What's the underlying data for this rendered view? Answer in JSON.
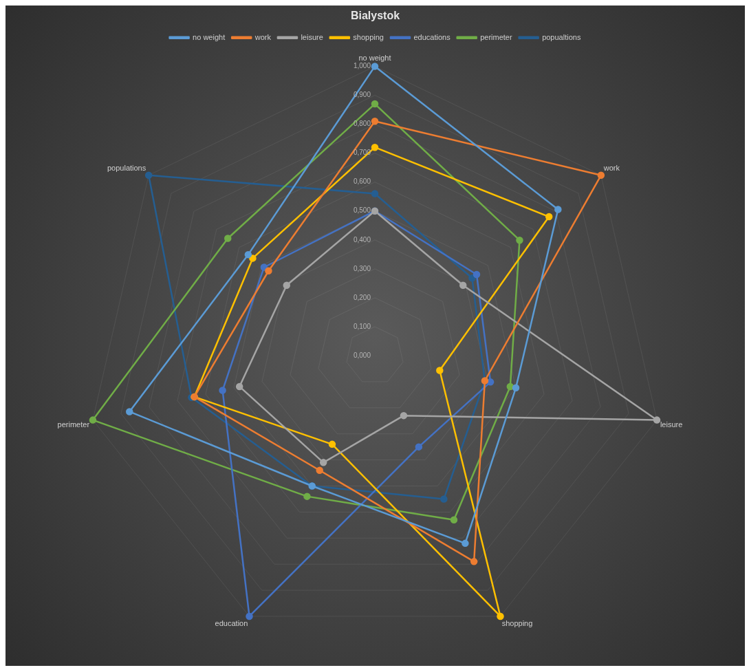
{
  "chart_data": {
    "type": "radar",
    "title": "Bialystok",
    "categories": [
      "no weight",
      "work",
      "leisure",
      "shopping",
      "education",
      "perimeter",
      "populations"
    ],
    "ylim": [
      0,
      1
    ],
    "yticks": [
      {
        "value": 0,
        "label": "0,000"
      },
      {
        "value": 0.1,
        "label": "0,100"
      },
      {
        "value": 0.2,
        "label": "0,200"
      },
      {
        "value": 0.3,
        "label": "0,300"
      },
      {
        "value": 0.4,
        "label": "0,400"
      },
      {
        "value": 0.5,
        "label": "0,500"
      },
      {
        "value": 0.6,
        "label": "0,600"
      },
      {
        "value": 0.7,
        "label": "0,700"
      },
      {
        "value": 0.8,
        "label": "0,800"
      },
      {
        "value": 0.9,
        "label": "0,900"
      },
      {
        "value": 1,
        "label": "1,000"
      }
    ],
    "grid": true,
    "legend": "top",
    "marker": "circle",
    "line_style": "solid",
    "series": [
      {
        "name": "no weight",
        "color": "#5b9bd5",
        "values": [
          1.0,
          0.81,
          0.5,
          0.72,
          0.5,
          0.87,
          0.56
        ]
      },
      {
        "name": "work",
        "color": "#ed7d31",
        "values": [
          0.81,
          1.0,
          0.39,
          0.79,
          0.44,
          0.64,
          0.47
        ]
      },
      {
        "name": "leisure",
        "color": "#a5a5a5",
        "values": [
          0.5,
          0.39,
          1.0,
          0.23,
          0.41,
          0.48,
          0.39
        ]
      },
      {
        "name": "shopping",
        "color": "#ffc000",
        "values": [
          0.72,
          0.77,
          0.23,
          1.0,
          0.34,
          0.64,
          0.54
        ]
      },
      {
        "name": "educations",
        "color": "#4472c4",
        "values": [
          0.5,
          0.45,
          0.41,
          0.35,
          1.0,
          0.54,
          0.49
        ]
      },
      {
        "name": "perimeter",
        "color": "#70ad47",
        "values": [
          0.87,
          0.64,
          0.48,
          0.63,
          0.54,
          1.0,
          0.65
        ]
      },
      {
        "name": "popualtions",
        "color": "#255e91",
        "values": [
          0.56,
          0.43,
          0.39,
          0.55,
          0.5,
          0.65,
          1.0
        ]
      }
    ]
  }
}
